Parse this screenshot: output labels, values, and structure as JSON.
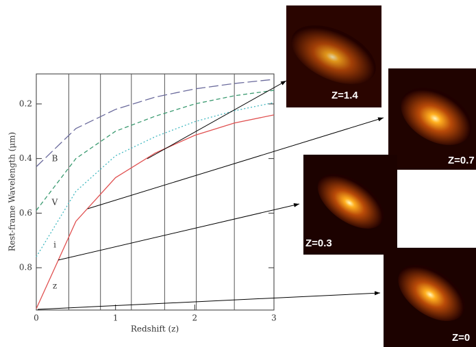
{
  "chart_data": {
    "type": "line",
    "x_label": "Redshift (z)",
    "y_label": "Rest-frame Wavelength (μm)",
    "x": [
      0,
      0.5,
      1,
      1.5,
      2,
      2.5,
      3
    ],
    "series": [
      {
        "name": "B",
        "color": "#6a6a9c",
        "dash": "14 5",
        "values": [
          0.43,
          0.29,
          0.22,
          0.175,
          0.145,
          0.125,
          0.11
        ]
      },
      {
        "name": "V",
        "color": "#3a9a70",
        "dash": "6 4",
        "values": [
          0.59,
          0.4,
          0.3,
          0.245,
          0.2,
          0.17,
          0.15
        ]
      },
      {
        "name": "i",
        "color": "#40b8c0",
        "dash": "2 3",
        "values": [
          0.76,
          0.52,
          0.39,
          0.32,
          0.265,
          0.225,
          0.195
        ]
      },
      {
        "name": "z",
        "color": "#e05050",
        "dash": "none",
        "values": [
          0.95,
          0.63,
          0.47,
          0.38,
          0.315,
          0.27,
          0.24
        ]
      }
    ],
    "vlines": [
      0.41,
      0.81,
      1.2,
      1.62,
      2.02,
      2.5
    ],
    "xlim": [
      0,
      3
    ],
    "xticks": [
      0,
      1,
      2,
      3
    ],
    "ylim": [
      0.09,
      0.955
    ],
    "y_inverted": true,
    "yticks": [
      0.2,
      0.4,
      0.6,
      0.8
    ]
  },
  "insets": [
    {
      "label": "Z=1.4"
    },
    {
      "label": "Z=0.7"
    },
    {
      "label": "Z=0.3"
    },
    {
      "label": "Z=0"
    }
  ]
}
